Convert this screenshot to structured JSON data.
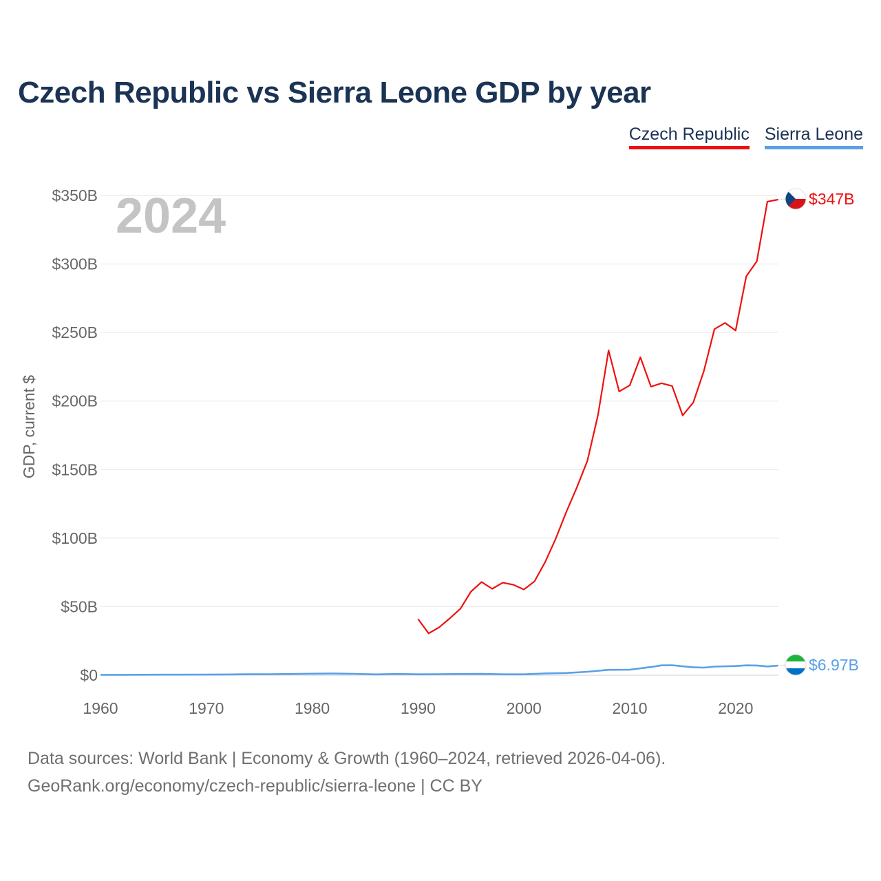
{
  "title": "Czech Republic vs Sierra Leone GDP by year",
  "legend": {
    "cz": "Czech Republic",
    "sl": "Sierra Leone"
  },
  "colors": {
    "cz": "#ef1010",
    "sl": "#5aa0e8",
    "title": "#1b3354",
    "year": "#c4c4c4",
    "axis_text": "#666666"
  },
  "footer": {
    "line1": "Data sources: World Bank | Economy & Growth (1960–2024, retrieved 2026-04-06).",
    "line2": "GeoRank.org/economy/czech-republic/sierra-leone | CC BY"
  },
  "chart_data": {
    "type": "line",
    "year_label": "2024",
    "ylabel": "GDP, current $",
    "ylim": [
      0,
      350
    ],
    "xlim": [
      1960,
      2024
    ],
    "y_ticks": [
      0,
      50,
      100,
      150,
      200,
      250,
      300,
      350
    ],
    "y_tick_labels": [
      "$0",
      "$50B",
      "$100B",
      "$150B",
      "$200B",
      "$250B",
      "$300B",
      "$350B"
    ],
    "x_ticks": [
      1960,
      1970,
      1980,
      1990,
      2000,
      2010,
      2020
    ],
    "x_tick_labels": [
      "1960",
      "1970",
      "1980",
      "1990",
      "2000",
      "2010",
      "2020"
    ],
    "series": [
      {
        "key": "cz",
        "name": "Czech Republic",
        "end_label": "$347B",
        "x": [
          1990,
          1991,
          1992,
          1993,
          1994,
          1995,
          1996,
          1997,
          1998,
          1999,
          2000,
          2001,
          2002,
          2003,
          2004,
          2005,
          2006,
          2007,
          2008,
          2009,
          2010,
          2011,
          2012,
          2013,
          2014,
          2015,
          2016,
          2017,
          2018,
          2019,
          2020,
          2021,
          2022,
          2023,
          2024
        ],
        "values": [
          41,
          30.5,
          35,
          41.5,
          48.5,
          61,
          68,
          63,
          67.5,
          66,
          62.5,
          68.5,
          82.5,
          99.5,
          119,
          137,
          156.5,
          190,
          237,
          207,
          211.5,
          232,
          210.5,
          213,
          211,
          189.5,
          199,
          222,
          252.5,
          257,
          251.5,
          291,
          302,
          345.5,
          347
        ]
      },
      {
        "key": "sl",
        "name": "Sierra Leone",
        "end_label": "$6.97B",
        "x": [
          1960,
          1962,
          1964,
          1966,
          1968,
          1970,
          1972,
          1974,
          1976,
          1978,
          1980,
          1982,
          1984,
          1986,
          1988,
          1990,
          1992,
          1994,
          1996,
          1998,
          2000,
          2002,
          2004,
          2006,
          2008,
          2010,
          2012,
          2013,
          2014,
          2015,
          2016,
          2017,
          2018,
          2020,
          2021,
          2022,
          2023,
          2024
        ],
        "values": [
          0.3,
          0.32,
          0.35,
          0.38,
          0.42,
          0.45,
          0.55,
          0.7,
          0.75,
          0.9,
          1.1,
          1.2,
          1.0,
          0.6,
          0.9,
          0.65,
          0.75,
          0.9,
          0.95,
          0.65,
          0.65,
          1.3,
          1.6,
          2.5,
          3.9,
          4.0,
          6.0,
          7.2,
          7.3,
          6.5,
          5.8,
          5.5,
          6.3,
          6.7,
          7.2,
          7.1,
          6.4,
          6.97
        ]
      }
    ]
  }
}
